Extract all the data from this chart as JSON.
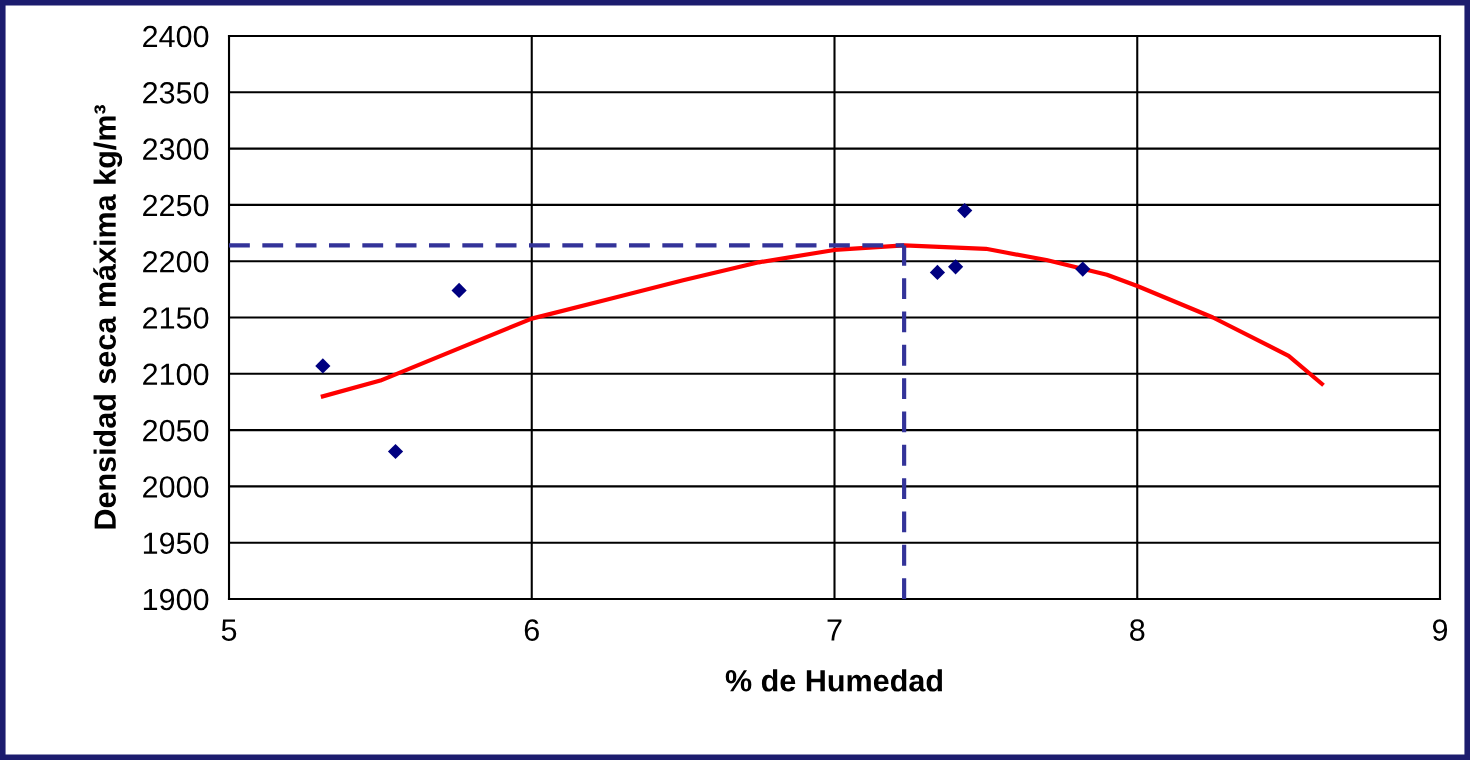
{
  "chart_data": {
    "type": "scatter",
    "xlabel": "% de Humedad",
    "ylabel": "Densidad seca máxima kg/m³",
    "xlim": [
      5,
      9
    ],
    "xticks": [
      5,
      6,
      7,
      8,
      9
    ],
    "ylim": [
      1900,
      2400
    ],
    "yticks": [
      1900,
      1950,
      2000,
      2050,
      2100,
      2150,
      2200,
      2250,
      2300,
      2350,
      2400
    ],
    "grid": true,
    "legend": false,
    "series": [
      {
        "color": "#000080",
        "marker": "diamond",
        "x": [
          5.31,
          5.55,
          5.76,
          7.34,
          7.4,
          7.43,
          7.82
        ],
        "values": [
          2107,
          2031,
          2174,
          2190,
          2195,
          2245,
          2193
        ]
      },
      {
        "type": "line",
        "color": "#ff0000",
        "marker": "none",
        "line_style": "solid",
        "x": [
          5.31,
          5.5,
          5.8,
          6.0,
          6.25,
          6.5,
          6.75,
          7.0,
          7.23,
          7.5,
          7.7,
          7.9,
          8.0,
          8.25,
          8.5,
          8.61
        ],
        "values": [
          2080,
          2094,
          2127,
          2149,
          2166,
          2183,
          2199,
          2210,
          2214,
          2211,
          2201,
          2188,
          2178,
          2150,
          2116,
          2091
        ]
      },
      {
        "type": "line",
        "color": "#333399",
        "marker": "none",
        "line_style": "dashed",
        "x": [
          5,
          7.23
        ],
        "values": [
          2214,
          2214
        ]
      },
      {
        "type": "line",
        "color": "#333399",
        "marker": "none",
        "line_style": "dashed",
        "x": [
          7.23,
          7.23
        ],
        "values": [
          1900,
          2214
        ]
      }
    ]
  }
}
